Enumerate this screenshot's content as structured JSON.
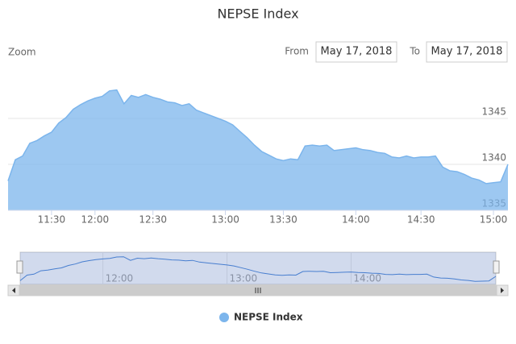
{
  "chart_data": {
    "type": "area",
    "title": "NEPSE Index",
    "range_selector": {
      "zoom_label": "Zoom",
      "from_label": "From",
      "from": "May 17, 2018",
      "to_label": "To",
      "to": "May 17, 2018"
    },
    "x": [
      "11:04",
      "11:09",
      "11:14",
      "11:19",
      "11:23",
      "11:26",
      "11:30",
      "11:35",
      "11:40",
      "11:45",
      "11:50",
      "11:55",
      "12:00",
      "12:04",
      "12:08",
      "12:11",
      "12:15",
      "12:19",
      "12:23",
      "12:26",
      "12:30",
      "12:33",
      "12:36",
      "12:39",
      "12:42",
      "12:45",
      "12:48",
      "12:51",
      "12:54",
      "12:57",
      "13:00",
      "13:04",
      "13:08",
      "13:11",
      "13:15",
      "13:19",
      "13:23",
      "13:26",
      "13:30",
      "13:33",
      "13:36",
      "13:39",
      "13:42",
      "13:45",
      "13:48",
      "13:51",
      "13:54",
      "13:57",
      "14:00",
      "14:03",
      "14:07",
      "14:10",
      "14:13",
      "14:17",
      "14:20",
      "14:23",
      "14:27",
      "14:30",
      "14:33",
      "14:36",
      "14:39",
      "14:42",
      "14:45",
      "14:48",
      "14:51",
      "14:54",
      "14:57",
      "15:00",
      "15:01",
      "15:02"
    ],
    "series": [
      {
        "name": "NEPSE Index",
        "color": "#7cb5ec",
        "values": [
          1338.2,
          1340.5,
          1340.9,
          1342.3,
          1342.6,
          1343.1,
          1343.5,
          1344.5,
          1345.1,
          1346.0,
          1346.5,
          1346.9,
          1347.2,
          1347.4,
          1348.0,
          1348.1,
          1346.6,
          1347.5,
          1347.3,
          1347.6,
          1347.3,
          1347.1,
          1346.8,
          1346.7,
          1346.4,
          1346.6,
          1345.9,
          1345.6,
          1345.3,
          1345.0,
          1344.7,
          1344.3,
          1343.6,
          1342.9,
          1342.1,
          1341.4,
          1341.0,
          1340.6,
          1340.4,
          1340.6,
          1340.5,
          1342.0,
          1342.1,
          1342.0,
          1342.1,
          1341.5,
          1341.6,
          1341.7,
          1341.8,
          1341.6,
          1341.5,
          1341.3,
          1341.2,
          1340.8,
          1340.7,
          1340.9,
          1340.7,
          1340.8,
          1340.8,
          1340.9,
          1339.7,
          1339.3,
          1339.2,
          1338.9,
          1338.5,
          1338.3,
          1337.9,
          1338.0,
          1338.1,
          1340.0
        ]
      }
    ],
    "xticks": [
      "11:30",
      "12:00",
      "12:30",
      "13:00",
      "13:30",
      "14:00",
      "14:30",
      "15:00"
    ],
    "ylim": [
      1335,
      1350
    ],
    "yticks": [
      1335,
      1340,
      1345
    ],
    "grid": true,
    "navigator": {
      "xticks": [
        "12:00",
        "13:00",
        "14:00"
      ],
      "ylim": [
        1337,
        1349
      ]
    },
    "legend": "bottom"
  }
}
